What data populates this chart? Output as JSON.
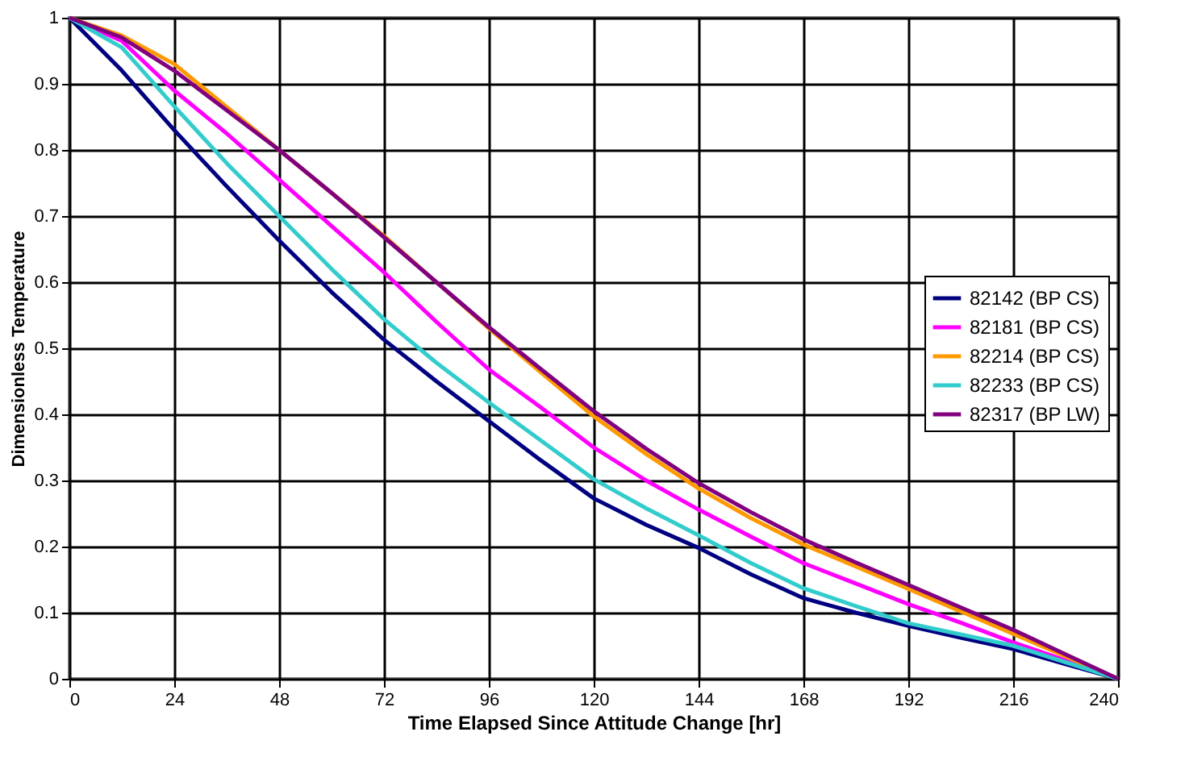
{
  "chart_data": {
    "type": "line",
    "xlabel": "Time Elapsed Since Attitude Change [hr]",
    "ylabel": "Dimensionless Temperature",
    "x": [
      0,
      12,
      24,
      36,
      48,
      60,
      72,
      84,
      96,
      108,
      120,
      132,
      144,
      156,
      168,
      180,
      192,
      204,
      216,
      228,
      240
    ],
    "series": [
      {
        "name": "82142 (BP CS)",
        "color": "#000080",
        "values": [
          1,
          0.92,
          0.83,
          0.745,
          0.663,
          0.585,
          0.513,
          0.45,
          0.39,
          0.33,
          0.273,
          0.233,
          0.198,
          0.158,
          0.122,
          0.1,
          0.08,
          0.062,
          0.045,
          0.022,
          0
        ]
      },
      {
        "name": "82181 (BP CS)",
        "color": "#ff00ff",
        "values": [
          1,
          0.965,
          0.89,
          0.825,
          0.755,
          0.685,
          0.615,
          0.54,
          0.468,
          0.41,
          0.35,
          0.3,
          0.256,
          0.215,
          0.175,
          0.144,
          0.113,
          0.085,
          0.055,
          0.028,
          0
        ]
      },
      {
        "name": "82214 (BP CS)",
        "color": "#ff9900",
        "values": [
          1,
          0.973,
          0.93,
          0.865,
          0.8,
          0.735,
          0.67,
          0.6,
          0.53,
          0.463,
          0.397,
          0.34,
          0.288,
          0.243,
          0.203,
          0.17,
          0.136,
          0.102,
          0.068,
          0.034,
          0
        ]
      },
      {
        "name": "82233 (BP CS)",
        "color": "#33cccc",
        "values": [
          1,
          0.955,
          0.866,
          0.78,
          0.7,
          0.62,
          0.544,
          0.478,
          0.418,
          0.36,
          0.302,
          0.258,
          0.217,
          0.175,
          0.137,
          0.11,
          0.084,
          0.067,
          0.05,
          0.025,
          0
        ]
      },
      {
        "name": "82317 (BP LW)",
        "color": "#800080",
        "values": [
          1,
          0.97,
          0.92,
          0.86,
          0.8,
          0.735,
          0.668,
          0.6,
          0.532,
          0.468,
          0.405,
          0.348,
          0.296,
          0.252,
          0.211,
          0.176,
          0.142,
          0.108,
          0.074,
          0.037,
          0
        ]
      }
    ],
    "xlim": [
      0,
      240
    ],
    "xticks": [
      0,
      24,
      48,
      72,
      96,
      120,
      144,
      168,
      192,
      216,
      240
    ],
    "ylim": [
      0,
      1
    ],
    "yticks": [
      0,
      0.1,
      0.2,
      0.3,
      0.4,
      0.5,
      0.6,
      0.7,
      0.8,
      0.9,
      1
    ],
    "grid": true,
    "legend": "right",
    "marker": "none",
    "line_style": "solid"
  }
}
